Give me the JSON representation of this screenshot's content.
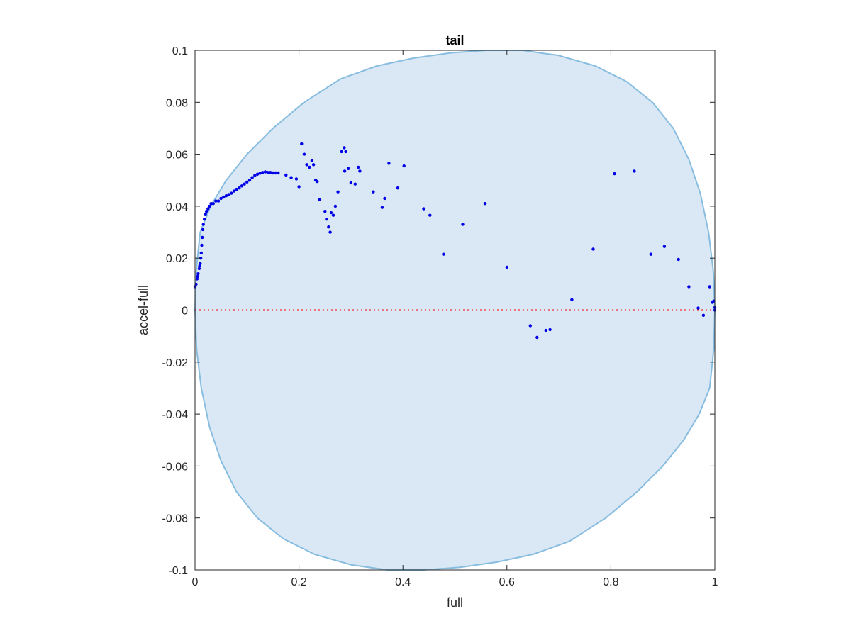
{
  "chart_data": {
    "type": "scatter",
    "title": "tail",
    "xlabel": "full",
    "ylabel": "accel-full",
    "xlim": [
      0,
      1
    ],
    "ylim": [
      -0.1,
      0.1
    ],
    "xticks": [
      0,
      0.2,
      0.4,
      0.6,
      0.8,
      1
    ],
    "xtick_labels": [
      "0",
      "0.2",
      "0.4",
      "0.6",
      "0.8",
      "1"
    ],
    "yticks": [
      0.1,
      0.08,
      0.06,
      0.04,
      0.02,
      0,
      -0.02,
      -0.04,
      -0.06,
      -0.08,
      -0.1
    ],
    "ytick_labels": [
      "0.1",
      "0.08",
      "0.06",
      "0.04",
      "0.02",
      "0",
      "-0.02",
      "-0.04",
      "-0.06",
      "-0.08",
      "-0.1"
    ],
    "grid": false,
    "reference_line": {
      "y": 0,
      "color": "#ff0000",
      "style": "dotted"
    },
    "region": {
      "shape": "ellipse",
      "fill": "#d9e8f4",
      "stroke": "#88bde0",
      "boundary": [
        [
          0,
          0
        ],
        [
          0.003,
          -0.015
        ],
        [
          0.012,
          -0.03
        ],
        [
          0.028,
          -0.045
        ],
        [
          0.05,
          -0.058
        ],
        [
          0.08,
          -0.07
        ],
        [
          0.12,
          -0.08
        ],
        [
          0.17,
          -0.088
        ],
        [
          0.23,
          -0.094
        ],
        [
          0.3,
          -0.098
        ],
        [
          0.37,
          -0.1
        ],
        [
          0.44,
          -0.1
        ],
        [
          0.51,
          -0.099
        ],
        [
          0.58,
          -0.097
        ],
        [
          0.65,
          -0.094
        ],
        [
          0.72,
          -0.089
        ],
        [
          0.79,
          -0.08
        ],
        [
          0.85,
          -0.07
        ],
        [
          0.9,
          -0.06
        ],
        [
          0.94,
          -0.05
        ],
        [
          0.97,
          -0.04
        ],
        [
          0.99,
          -0.03
        ],
        [
          0.998,
          -0.015
        ],
        [
          1,
          0
        ],
        [
          0.997,
          0.015
        ],
        [
          0.988,
          0.03
        ],
        [
          0.972,
          0.045
        ],
        [
          0.95,
          0.058
        ],
        [
          0.92,
          0.07
        ],
        [
          0.88,
          0.08
        ],
        [
          0.83,
          0.088
        ],
        [
          0.77,
          0.094
        ],
        [
          0.7,
          0.098
        ],
        [
          0.63,
          0.1
        ],
        [
          0.56,
          0.1
        ],
        [
          0.49,
          0.099
        ],
        [
          0.42,
          0.097
        ],
        [
          0.35,
          0.094
        ],
        [
          0.28,
          0.089
        ],
        [
          0.21,
          0.08
        ],
        [
          0.15,
          0.07
        ],
        [
          0.1,
          0.06
        ],
        [
          0.06,
          0.05
        ],
        [
          0.03,
          0.04
        ],
        [
          0.01,
          0.03
        ],
        [
          0.002,
          0.015
        ]
      ]
    },
    "series": [
      {
        "color": "#0000e6",
        "points": [
          [
            0.0,
            0.009
          ],
          [
            0.002,
            0.01
          ],
          [
            0.004,
            0.012
          ],
          [
            0.005,
            0.013
          ],
          [
            0.006,
            0.014
          ],
          [
            0.008,
            0.016
          ],
          [
            0.009,
            0.017
          ],
          [
            0.01,
            0.018
          ],
          [
            0.011,
            0.02
          ],
          [
            0.012,
            0.022
          ],
          [
            0.013,
            0.025
          ],
          [
            0.014,
            0.028
          ],
          [
            0.015,
            0.031
          ],
          [
            0.016,
            0.033
          ],
          [
            0.018,
            0.035
          ],
          [
            0.02,
            0.037
          ],
          [
            0.022,
            0.038
          ],
          [
            0.025,
            0.039
          ],
          [
            0.028,
            0.04
          ],
          [
            0.031,
            0.041
          ],
          [
            0.035,
            0.041
          ],
          [
            0.04,
            0.042
          ],
          [
            0.045,
            0.042
          ],
          [
            0.05,
            0.043
          ],
          [
            0.055,
            0.0435
          ],
          [
            0.06,
            0.044
          ],
          [
            0.065,
            0.0445
          ],
          [
            0.07,
            0.045
          ],
          [
            0.075,
            0.0458
          ],
          [
            0.08,
            0.0465
          ],
          [
            0.085,
            0.047
          ],
          [
            0.09,
            0.0478
          ],
          [
            0.095,
            0.0485
          ],
          [
            0.1,
            0.0493
          ],
          [
            0.105,
            0.05
          ],
          [
            0.11,
            0.051
          ],
          [
            0.115,
            0.0518
          ],
          [
            0.12,
            0.0523
          ],
          [
            0.125,
            0.0527
          ],
          [
            0.13,
            0.053
          ],
          [
            0.135,
            0.0532
          ],
          [
            0.14,
            0.053
          ],
          [
            0.145,
            0.053
          ],
          [
            0.15,
            0.0528
          ],
          [
            0.155,
            0.0528
          ],
          [
            0.16,
            0.0528
          ],
          [
            0.175,
            0.052
          ],
          [
            0.185,
            0.051
          ],
          [
            0.195,
            0.0505
          ],
          [
            0.2,
            0.0475
          ],
          [
            0.205,
            0.064
          ],
          [
            0.21,
            0.06
          ],
          [
            0.215,
            0.056
          ],
          [
            0.22,
            0.055
          ],
          [
            0.225,
            0.0575
          ],
          [
            0.228,
            0.056
          ],
          [
            0.232,
            0.05
          ],
          [
            0.235,
            0.0495
          ],
          [
            0.24,
            0.0425
          ],
          [
            0.25,
            0.038
          ],
          [
            0.253,
            0.035
          ],
          [
            0.257,
            0.032
          ],
          [
            0.26,
            0.03
          ],
          [
            0.262,
            0.0375
          ],
          [
            0.266,
            0.0365
          ],
          [
            0.27,
            0.04
          ],
          [
            0.275,
            0.0455
          ],
          [
            0.282,
            0.061
          ],
          [
            0.287,
            0.0625
          ],
          [
            0.29,
            0.061
          ],
          [
            0.288,
            0.0535
          ],
          [
            0.295,
            0.0545
          ],
          [
            0.3,
            0.049
          ],
          [
            0.308,
            0.0485
          ],
          [
            0.314,
            0.055
          ],
          [
            0.317,
            0.0535
          ],
          [
            0.343,
            0.0455
          ],
          [
            0.36,
            0.0395
          ],
          [
            0.365,
            0.043
          ],
          [
            0.373,
            0.0565
          ],
          [
            0.39,
            0.047
          ],
          [
            0.402,
            0.0555
          ],
          [
            0.44,
            0.039
          ],
          [
            0.452,
            0.0365
          ],
          [
            0.478,
            0.0215
          ],
          [
            0.515,
            0.033
          ],
          [
            0.558,
            0.041
          ],
          [
            0.6,
            0.0165
          ],
          [
            0.645,
            -0.006
          ],
          [
            0.658,
            -0.0105
          ],
          [
            0.675,
            -0.0078
          ],
          [
            0.683,
            -0.0075
          ],
          [
            0.725,
            0.004
          ],
          [
            0.766,
            0.0235
          ],
          [
            0.807,
            0.0525
          ],
          [
            0.845,
            0.0535
          ],
          [
            0.877,
            0.0215
          ],
          [
            0.903,
            0.0245
          ],
          [
            0.93,
            0.0195
          ],
          [
            0.95,
            0.009
          ],
          [
            0.968,
            0.0008
          ],
          [
            0.978,
            -0.002
          ],
          [
            0.99,
            0.009
          ],
          [
            0.995,
            0.003
          ],
          [
            0.998,
            0.0035
          ],
          [
            1.0,
            0.001
          ],
          [
            1.0,
            0.0
          ]
        ]
      }
    ]
  }
}
